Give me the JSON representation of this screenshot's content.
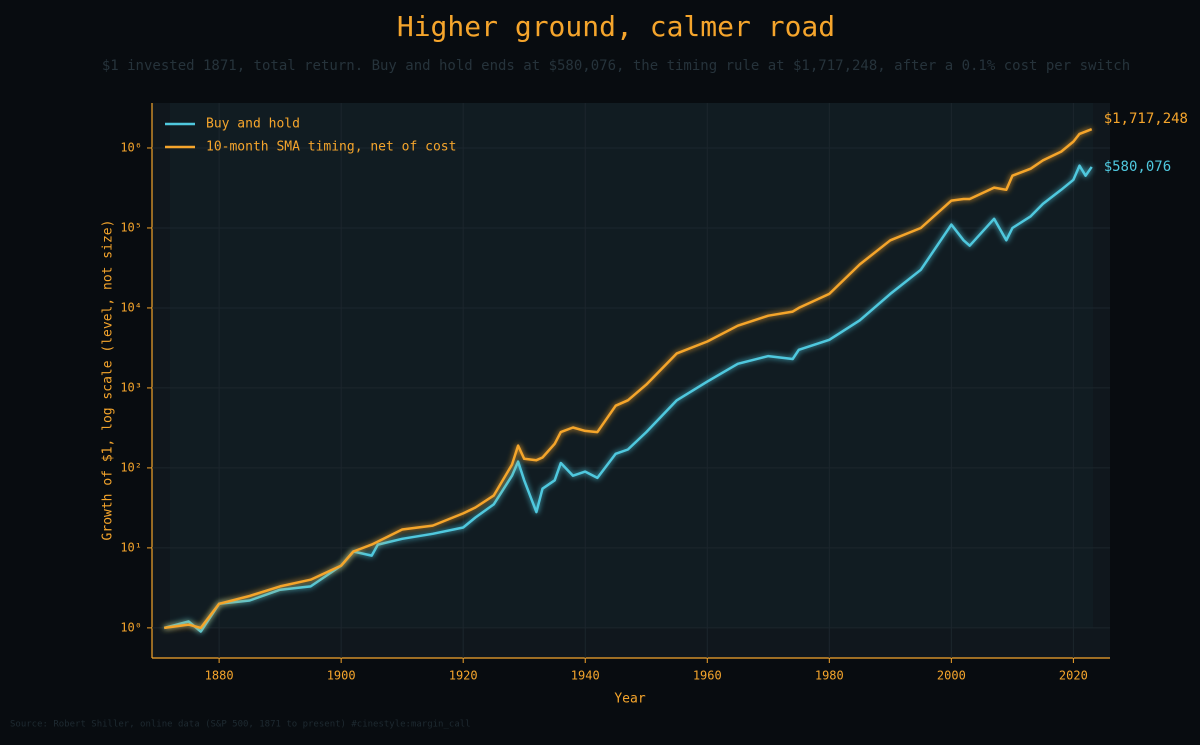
{
  "chart_data": {
    "type": "line",
    "title": "Higher ground, calmer road",
    "subtitle": "$1 invested 1871, total return. Buy and hold ends at $580,076, the timing rule at $1,717,248, after a 0.1% cost per switch",
    "source": "Source: Robert Shiller, online data (S&P 500, 1871 to present)  #cinestyle:margin_call",
    "x_label": "Year",
    "y_label": "Growth of $1, log scale (level, not size)",
    "log_y": true,
    "grid": true,
    "legend": "upper left",
    "x": [
      1871,
      1875,
      1877,
      1880,
      1885,
      1890,
      1895,
      1900,
      1902,
      1905,
      1906,
      1910,
      1915,
      1920,
      1922,
      1925,
      1928,
      1929,
      1930,
      1932,
      1933,
      1935,
      1936,
      1938,
      1940,
      1942,
      1945,
      1947,
      1950,
      1955,
      1960,
      1965,
      1970,
      1974,
      1975,
      1980,
      1985,
      1990,
      1995,
      2000,
      2002,
      2003,
      2007,
      2009,
      2010,
      2013,
      2015,
      2018,
      2020,
      2021,
      2022,
      2023
    ],
    "series": [
      {
        "name": "Buy and hold",
        "color": "#4fc8de",
        "end_label": "$580,076",
        "values": [
          1.0,
          1.2,
          0.9,
          2,
          2.2,
          3,
          3.3,
          6,
          9,
          8,
          11,
          13,
          15,
          18,
          24,
          35,
          80,
          120,
          70,
          28,
          55,
          70,
          115,
          80,
          90,
          75,
          150,
          170,
          280,
          700,
          1200,
          2000,
          2500,
          2300,
          3000,
          4000,
          7000,
          15000,
          30000,
          110000,
          70000,
          60000,
          130000,
          70000,
          100000,
          140000,
          200000,
          300000,
          400000,
          600000,
          450000,
          580076
        ]
      },
      {
        "name": "10-month SMA timing, net of cost",
        "color": "#f5a52c",
        "end_label": "$1,717,248",
        "values": [
          1.0,
          1.1,
          1.0,
          2,
          2.5,
          3.3,
          4,
          6,
          9,
          11,
          12,
          17,
          19,
          27,
          32,
          45,
          110,
          190,
          130,
          125,
          135,
          200,
          280,
          320,
          290,
          280,
          600,
          700,
          1100,
          2700,
          3800,
          6000,
          8000,
          9000,
          10000,
          15000,
          35000,
          70000,
          100000,
          220000,
          230000,
          230000,
          320000,
          300000,
          450000,
          550000,
          700000,
          900000,
          1200000,
          1500000,
          1600000,
          1717248
        ]
      }
    ],
    "xlim": [
      1869,
      2026
    ],
    "xticks": [
      1880,
      1900,
      1920,
      1940,
      1960,
      1980,
      2000,
      2020
    ],
    "ylim": [
      0.42,
      3650000
    ],
    "yticks": [
      {
        "value": 1,
        "label": "10⁰"
      },
      {
        "value": 10,
        "label": "10¹"
      },
      {
        "value": 100,
        "label": "10²"
      },
      {
        "value": 1000,
        "label": "10³"
      },
      {
        "value": 10000,
        "label": "10⁴"
      },
      {
        "value": 100000,
        "label": "10⁵"
      },
      {
        "value": 1000000,
        "label": "10⁶"
      }
    ]
  }
}
